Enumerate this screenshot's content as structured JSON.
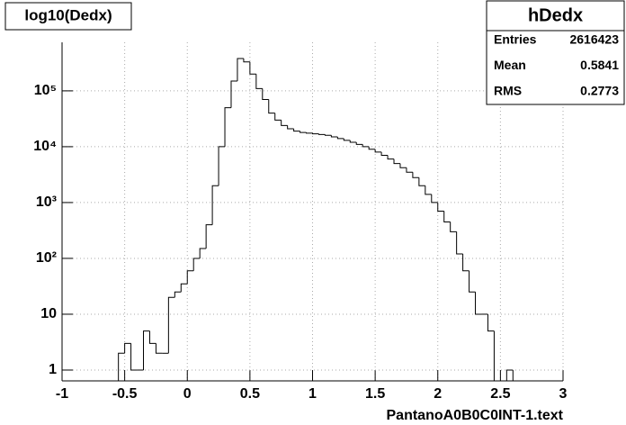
{
  "chart_data": {
    "type": "histogram",
    "title": "log10(Dedx)",
    "x_label": "PantanoA0B0C0INT-1.text",
    "bins": [
      -1,
      -0.95,
      -0.9,
      -0.85,
      -0.8,
      -0.75,
      -0.7,
      -0.65,
      -0.6,
      -0.55,
      -0.5,
      -0.45,
      -0.4,
      -0.35,
      -0.3,
      -0.25,
      -0.2,
      -0.15,
      -0.1,
      -0.05,
      0,
      0.05,
      0.1,
      0.15,
      0.2,
      0.25,
      0.3,
      0.35,
      0.4,
      0.45,
      0.5,
      0.55,
      0.6,
      0.65,
      0.7,
      0.75,
      0.8,
      0.85,
      0.9,
      0.95,
      1,
      1.05,
      1.1,
      1.15,
      1.2,
      1.25,
      1.3,
      1.35,
      1.4,
      1.45,
      1.5,
      1.55,
      1.6,
      1.65,
      1.7,
      1.75,
      1.8,
      1.85,
      1.9,
      1.95,
      2,
      2.05,
      2.1,
      2.15,
      2.2,
      2.25,
      2.3,
      2.35,
      2.4,
      2.45,
      2.5,
      2.55,
      2.6,
      2.65,
      2.7,
      2.75,
      2.8,
      2.85,
      2.9,
      2.95,
      3
    ],
    "values": [
      0,
      0,
      0,
      0,
      0,
      0,
      0,
      0,
      0,
      2,
      3,
      1,
      1,
      5,
      3,
      2,
      2,
      20,
      25,
      35,
      60,
      100,
      150,
      400,
      2000,
      10000,
      50000,
      150000,
      380000,
      330000,
      200000,
      110000,
      70000,
      40000,
      30000,
      24000,
      21000,
      19000,
      18000,
      17500,
      17000,
      16500,
      16000,
      15000,
      14000,
      13000,
      12000,
      11000,
      10000,
      9000,
      8000,
      7000,
      6000,
      5000,
      4200,
      3500,
      2800,
      2000,
      1400,
      1000,
      700,
      450,
      300,
      120,
      60,
      25,
      10,
      10,
      5,
      0,
      0,
      1,
      0,
      0,
      0,
      0,
      0,
      0,
      0,
      0
    ],
    "color": "#000000",
    "log_y": true,
    "grid": true,
    "xlim": [
      -1,
      3
    ],
    "xticks": [
      -1,
      -0.5,
      0,
      0.5,
      1,
      1.5,
      2,
      2.5,
      3
    ],
    "ylim": [
      0.64,
      740000
    ],
    "yticks": [
      1,
      10,
      {
        "value": 100,
        "label": "10²"
      },
      {
        "value": 1000,
        "label": "10³"
      },
      {
        "value": 10000,
        "label": "10⁴"
      },
      {
        "value": 100000,
        "label": "10⁵"
      }
    ],
    "stats": {
      "title": "hDedx",
      "rows": [
        [
          "Entries",
          "2616423"
        ],
        [
          "Mean",
          "0.5841"
        ],
        [
          "RMS",
          "0.2773"
        ]
      ]
    }
  }
}
